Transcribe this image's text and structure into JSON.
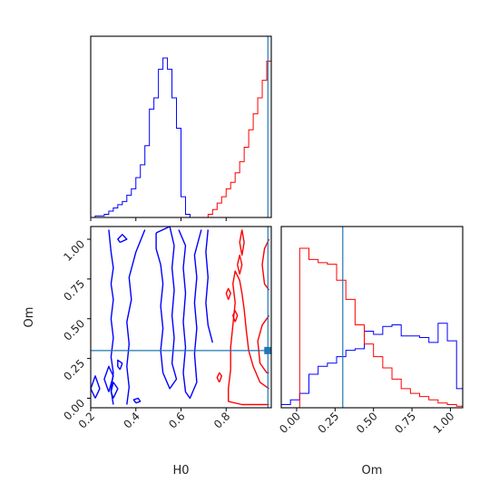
{
  "chart_data": [
    {
      "panel": "top-left",
      "type": "line",
      "subtype": "step-histogram",
      "xlim": [
        0.2,
        1.0
      ],
      "y_tick_labels": "hidden",
      "bins_x": [
        0.2,
        0.22,
        0.24,
        0.26,
        0.28,
        0.3,
        0.32,
        0.34,
        0.36,
        0.38,
        0.4,
        0.42,
        0.44,
        0.46,
        0.48,
        0.5,
        0.52,
        0.54,
        0.56,
        0.58,
        0.6,
        0.62,
        0.64,
        0.66,
        0.68,
        0.7,
        0.72,
        0.74,
        0.76,
        0.78,
        0.8,
        0.82,
        0.84,
        0.86,
        0.88,
        0.9,
        0.92,
        0.94,
        0.96,
        0.98,
        1.0
      ],
      "series": [
        {
          "color": "#0000ff",
          "values": [
            0.0,
            0.01,
            0.01,
            0.02,
            0.04,
            0.06,
            0.08,
            0.1,
            0.14,
            0.18,
            0.25,
            0.33,
            0.45,
            0.68,
            0.75,
            0.93,
            1.0,
            0.93,
            0.75,
            0.56,
            0.13,
            0.02,
            0,
            0,
            0,
            0,
            0,
            0,
            0,
            0,
            0,
            0,
            0,
            0,
            0,
            0,
            0,
            0,
            0,
            0
          ]
        },
        {
          "color": "#ff0000",
          "values": [
            0,
            0,
            0,
            0,
            0,
            0,
            0,
            0,
            0,
            0,
            0,
            0,
            0,
            0,
            0,
            0,
            0,
            0,
            0,
            0,
            0,
            0,
            0,
            0,
            0,
            0,
            0.02,
            0.05,
            0.09,
            0.13,
            0.18,
            0.22,
            0.28,
            0.35,
            0.44,
            0.55,
            0.65,
            0.75,
            0.86,
            0.98
          ]
        }
      ],
      "truth_lines": [
        {
          "orientation": "vertical",
          "x": 0.985,
          "color": "#1f77b4"
        }
      ]
    },
    {
      "panel": "bottom-left",
      "type": "scatter",
      "subtype": "contour",
      "xlabel": "H0",
      "ylabel": "Om",
      "xlim": [
        0.2,
        1.0
      ],
      "ylim": [
        -0.06,
        1.08
      ],
      "xticks": [
        "0.2",
        "0.4",
        "0.6",
        "0.8"
      ],
      "xtick_values": [
        0.2,
        0.4,
        0.6,
        0.8
      ],
      "yticks": [
        "0.00",
        "0.25",
        "0.50",
        "0.75",
        "1.00"
      ],
      "ytick_values": [
        0.0,
        0.25,
        0.5,
        0.75,
        1.0
      ],
      "series": [
        {
          "color": "#0000ff",
          "contours": [
            [
              [
                0.28,
                1.06
              ],
              [
                0.29,
                0.92
              ],
              [
                0.3,
                0.82
              ],
              [
                0.29,
                0.72
              ],
              [
                0.3,
                0.62
              ],
              [
                0.29,
                0.5
              ],
              [
                0.3,
                0.38
              ],
              [
                0.29,
                0.26
              ],
              [
                0.3,
                0.16
              ],
              [
                0.29,
                0.05
              ],
              [
                0.3,
                -0.04
              ]
            ],
            [
              [
                0.36,
                -0.04
              ],
              [
                0.37,
                0.07
              ],
              [
                0.36,
                0.2
              ],
              [
                0.37,
                0.34
              ],
              [
                0.36,
                0.48
              ],
              [
                0.38,
                0.62
              ],
              [
                0.37,
                0.76
              ],
              [
                0.4,
                0.92
              ],
              [
                0.44,
                1.06
              ]
            ],
            [
              [
                0.49,
                1.04
              ],
              [
                0.55,
                1.08
              ],
              [
                0.57,
                0.96
              ],
              [
                0.56,
                0.82
              ],
              [
                0.57,
                0.68
              ],
              [
                0.56,
                0.52
              ],
              [
                0.57,
                0.38
              ],
              [
                0.56,
                0.22
              ],
              [
                0.58,
                0.12
              ],
              [
                0.55,
                0.06
              ],
              [
                0.52,
                0.16
              ],
              [
                0.51,
                0.3
              ],
              [
                0.52,
                0.44
              ],
              [
                0.51,
                0.58
              ],
              [
                0.52,
                0.72
              ],
              [
                0.51,
                0.84
              ],
              [
                0.49,
                0.94
              ],
              [
                0.49,
                1.04
              ]
            ],
            [
              [
                0.59,
                1.06
              ],
              [
                0.62,
                0.96
              ],
              [
                0.61,
                0.82
              ],
              [
                0.62,
                0.66
              ],
              [
                0.61,
                0.48
              ],
              [
                0.62,
                0.32
              ],
              [
                0.61,
                0.16
              ],
              [
                0.62,
                0.04
              ],
              [
                0.64,
                0.0
              ],
              [
                0.67,
                0.1
              ],
              [
                0.66,
                0.28
              ],
              [
                0.67,
                0.44
              ],
              [
                0.66,
                0.6
              ],
              [
                0.67,
                0.76
              ],
              [
                0.66,
                0.9
              ],
              [
                0.69,
                1.06
              ]
            ],
            [
              [
                0.72,
                1.06
              ],
              [
                0.71,
                0.92
              ],
              [
                0.72,
                0.76
              ],
              [
                0.71,
                0.6
              ],
              [
                0.72,
                0.46
              ],
              [
                0.74,
                0.35
              ]
            ],
            [
              [
                0.22,
                0.0
              ],
              [
                0.24,
                0.06
              ],
              [
                0.22,
                0.14
              ],
              [
                0.2,
                0.06
              ],
              [
                0.22,
                0.0
              ]
            ],
            [
              [
                0.28,
                0.04
              ],
              [
                0.3,
                0.14
              ],
              [
                0.28,
                0.2
              ],
              [
                0.26,
                0.12
              ],
              [
                0.28,
                0.04
              ]
            ],
            [
              [
                0.3,
                0.0
              ],
              [
                0.32,
                0.06
              ],
              [
                0.3,
                0.1
              ],
              [
                0.29,
                0.04
              ],
              [
                0.3,
                0.0
              ]
            ],
            [
              [
                0.33,
                0.18
              ],
              [
                0.34,
                0.22
              ],
              [
                0.32,
                0.24
              ],
              [
                0.32,
                0.2
              ],
              [
                0.33,
                0.18
              ]
            ],
            [
              [
                0.4,
                -0.03
              ],
              [
                0.42,
                -0.02
              ],
              [
                0.41,
                0.0
              ],
              [
                0.39,
                -0.01
              ],
              [
                0.4,
                -0.03
              ]
            ],
            [
              [
                0.33,
                0.98
              ],
              [
                0.36,
                1.0
              ],
              [
                0.34,
                1.03
              ],
              [
                0.32,
                1.0
              ],
              [
                0.33,
                0.98
              ]
            ]
          ]
        },
        {
          "color": "#ff0000",
          "contours": [
            [
              [
                0.99,
                0.06
              ],
              [
                0.95,
                0.1
              ],
              [
                0.92,
                0.2
              ],
              [
                0.9,
                0.3
              ],
              [
                0.89,
                0.42
              ],
              [
                0.88,
                0.56
              ],
              [
                0.87,
                0.66
              ],
              [
                0.86,
                0.74
              ],
              [
                0.84,
                0.8
              ],
              [
                0.83,
                0.72
              ],
              [
                0.84,
                0.6
              ],
              [
                0.83,
                0.46
              ],
              [
                0.82,
                0.32
              ],
              [
                0.82,
                0.18
              ],
              [
                0.81,
                0.06
              ],
              [
                0.81,
                -0.02
              ],
              [
                0.87,
                -0.04
              ],
              [
                0.95,
                -0.04
              ],
              [
                0.99,
                -0.04
              ]
            ],
            [
              [
                0.99,
                0.52
              ],
              [
                0.96,
                0.46
              ],
              [
                0.94,
                0.36
              ],
              [
                0.95,
                0.22
              ],
              [
                0.98,
                0.16
              ],
              [
                0.99,
                0.16
              ]
            ],
            [
              [
                0.99,
                1.0
              ],
              [
                0.97,
                0.94
              ],
              [
                0.96,
                0.84
              ],
              [
                0.97,
                0.72
              ],
              [
                0.99,
                0.68
              ]
            ],
            [
              [
                0.87,
                1.06
              ],
              [
                0.88,
                0.98
              ],
              [
                0.87,
                0.9
              ],
              [
                0.86,
                0.98
              ],
              [
                0.87,
                1.06
              ]
            ],
            [
              [
                0.86,
                0.78
              ],
              [
                0.87,
                0.84
              ],
              [
                0.86,
                0.9
              ],
              [
                0.85,
                0.84
              ],
              [
                0.86,
                0.78
              ]
            ],
            [
              [
                0.84,
                0.48
              ],
              [
                0.85,
                0.52
              ],
              [
                0.84,
                0.55
              ],
              [
                0.83,
                0.52
              ],
              [
                0.84,
                0.48
              ]
            ],
            [
              [
                0.77,
                0.1
              ],
              [
                0.78,
                0.14
              ],
              [
                0.77,
                0.16
              ],
              [
                0.76,
                0.13
              ],
              [
                0.77,
                0.1
              ]
            ],
            [
              [
                0.81,
                0.62
              ],
              [
                0.82,
                0.66
              ],
              [
                0.81,
                0.69
              ],
              [
                0.8,
                0.66
              ],
              [
                0.81,
                0.62
              ]
            ]
          ]
        }
      ],
      "truth_lines": [
        {
          "orientation": "vertical",
          "x": 0.985,
          "color": "#1f77b4"
        },
        {
          "orientation": "horizontal",
          "y": 0.3,
          "color": "#1f77b4"
        }
      ],
      "truth_marker": {
        "x": 0.985,
        "y": 0.3,
        "color": "#1f77b4"
      }
    },
    {
      "panel": "bottom-right",
      "type": "line",
      "subtype": "step-histogram",
      "xlabel": "Om",
      "xlim": [
        -0.1,
        1.08
      ],
      "xticks": [
        "0.00",
        "0.25",
        "0.50",
        "0.75",
        "1.00"
      ],
      "xtick_values": [
        0.0,
        0.25,
        0.5,
        0.75,
        1.0
      ],
      "y_tick_labels": "hidden",
      "bins_x": [
        -0.1,
        -0.04,
        0.02,
        0.08,
        0.14,
        0.2,
        0.26,
        0.32,
        0.38,
        0.44,
        0.5,
        0.56,
        0.62,
        0.68,
        0.74,
        0.8,
        0.86,
        0.92,
        0.98,
        1.04,
        1.1
      ],
      "series": [
        {
          "color": "#0000ff",
          "values": [
            0.02,
            0.05,
            0.09,
            0.21,
            0.26,
            0.28,
            0.32,
            0.36,
            0.37,
            0.48,
            0.46,
            0.51,
            0.52,
            0.45,
            0.45,
            0.44,
            0.41,
            0.53,
            0.42,
            0.12
          ]
        },
        {
          "color": "#ff0000",
          "values": [
            0,
            0,
            1.0,
            0.93,
            0.91,
            0.9,
            0.8,
            0.68,
            0.52,
            0.4,
            0.32,
            0.25,
            0.18,
            0.12,
            0.09,
            0.07,
            0.05,
            0.03,
            0.02,
            0.01
          ]
        }
      ],
      "truth_lines": [
        {
          "orientation": "vertical",
          "x": 0.3,
          "color": "#1f77b4"
        }
      ]
    }
  ]
}
